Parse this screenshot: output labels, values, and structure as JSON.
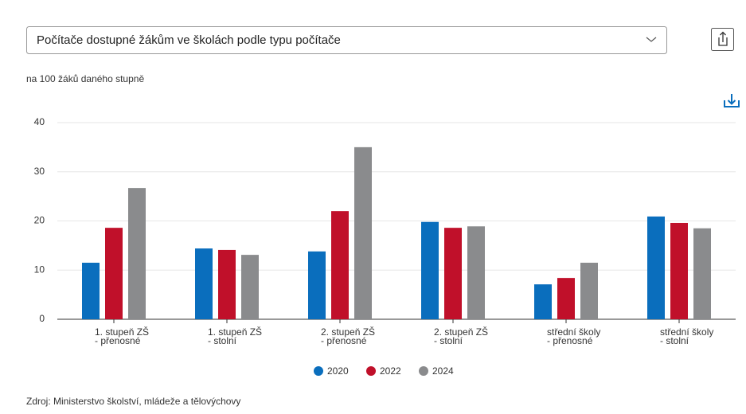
{
  "chart_data": {
    "type": "bar",
    "title": "Počítače dostupné žákům ve školách podle typu počítače",
    "subtitle": "na 100 žáků daného stupně",
    "source": "Zdroj: Ministerstvo školství, mládeže a tělovýchovy",
    "categories": [
      [
        "1. stupeň ZŠ",
        "- přenosné"
      ],
      [
        "1. stupeň ZŠ",
        "- stolní"
      ],
      [
        "2. stupeň ZŠ",
        "- přenosné"
      ],
      [
        "2. stupeň ZŠ",
        "- stolní"
      ],
      [
        "střední školy",
        "- přenosné"
      ],
      [
        "střední školy",
        "- stolní"
      ]
    ],
    "series": [
      {
        "name": "2020",
        "color": "#0a6ebd",
        "values": [
          11.5,
          14.4,
          13.8,
          19.8,
          7.1,
          20.9
        ]
      },
      {
        "name": "2022",
        "color": "#c0102a",
        "values": [
          18.6,
          14.1,
          22.0,
          18.6,
          8.4,
          19.6
        ]
      },
      {
        "name": "2024",
        "color": "#8a8b8d",
        "values": [
          26.7,
          13.1,
          35.0,
          18.9,
          11.5,
          18.5
        ]
      }
    ],
    "ylim": [
      0,
      40
    ],
    "yticks": [
      0,
      10,
      20,
      30,
      40
    ],
    "grid": true
  }
}
